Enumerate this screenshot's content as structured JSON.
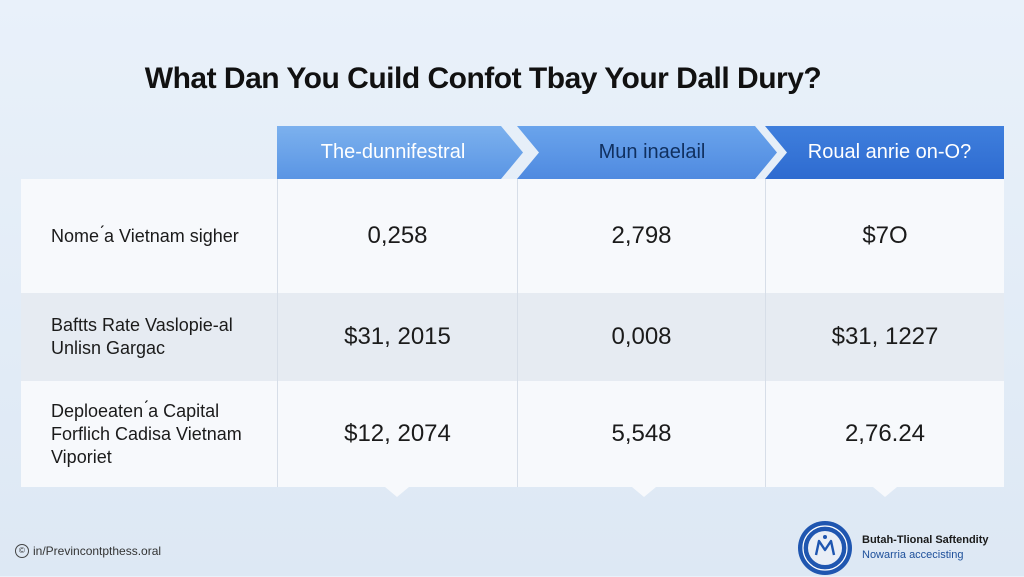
{
  "title": "What Dan You Cuild Confot Tbay Your Dall Dury?",
  "headers": [
    "The-dunnifestral",
    "Mun inaelail",
    "Roual anrie on-O?"
  ],
  "rows": [
    {
      "label": "Nome ́a Vietnam sigher",
      "values": [
        "0,258",
        "2,798",
        "$7O"
      ]
    },
    {
      "label": "Baftts Rate Vaslopie-al\nUnlisn Gargac",
      "values": [
        "$31, 2015",
        "0,008",
        "$31, 1227"
      ]
    },
    {
      "label": "Deploeaten ́a Capital\nForflich Cadisa  Vietnam\nViporiet",
      "values": [
        "$12, 2074",
        "5,548",
        "2,76.24"
      ]
    }
  ],
  "footer": {
    "source": "in/Previncontpthess.oral",
    "org_line1": "Butah-Tlional Saftendity",
    "org_line2": "Nowarria accecisting"
  },
  "icons": {
    "copyright": "copyright-icon",
    "seal": "seal-logo"
  },
  "colors": {
    "header1": "#6aa4ec",
    "header2": "#5a95e4",
    "header3": "#2e6bd0",
    "org_link": "#1d4f9a"
  }
}
